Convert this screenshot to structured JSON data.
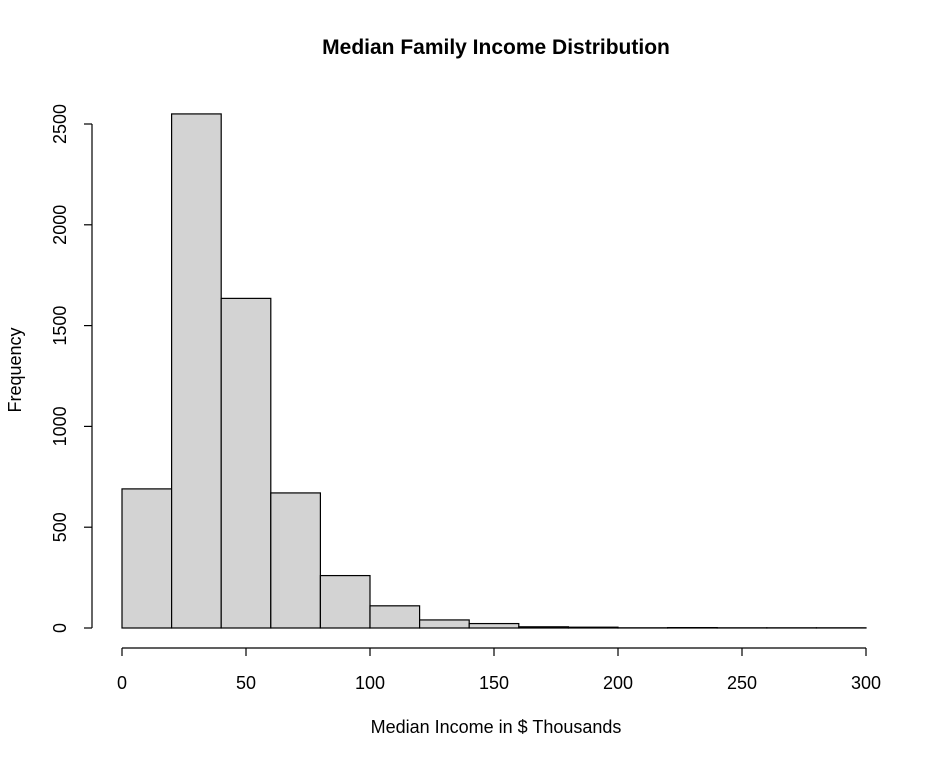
{
  "chart_data": {
    "type": "bar",
    "title": "Median Family Income Distribution",
    "xlabel": "Median Income in $ Thousands",
    "ylabel": "Frequency",
    "bins": [
      {
        "start": 0,
        "end": 20,
        "value": 690
      },
      {
        "start": 20,
        "end": 40,
        "value": 2550
      },
      {
        "start": 40,
        "end": 60,
        "value": 1635
      },
      {
        "start": 60,
        "end": 80,
        "value": 670
      },
      {
        "start": 80,
        "end": 100,
        "value": 260
      },
      {
        "start": 100,
        "end": 120,
        "value": 110
      },
      {
        "start": 120,
        "end": 140,
        "value": 40
      },
      {
        "start": 140,
        "end": 160,
        "value": 22
      },
      {
        "start": 160,
        "end": 180,
        "value": 6
      },
      {
        "start": 180,
        "end": 200,
        "value": 4
      },
      {
        "start": 200,
        "end": 220,
        "value": 1
      },
      {
        "start": 220,
        "end": 240,
        "value": 2
      },
      {
        "start": 240,
        "end": 260,
        "value": 1
      },
      {
        "start": 260,
        "end": 280,
        "value": 1
      },
      {
        "start": 280,
        "end": 300,
        "value": 1
      }
    ],
    "xlim": [
      0,
      300
    ],
    "ylim": [
      0,
      2500
    ],
    "xticks": [
      0,
      50,
      100,
      150,
      200,
      250,
      300
    ],
    "yticks": [
      0,
      500,
      1000,
      1500,
      2000,
      2500
    ],
    "grid": false,
    "colors": {
      "bar_fill": "#d3d3d3",
      "bar_stroke": "#000000"
    }
  }
}
